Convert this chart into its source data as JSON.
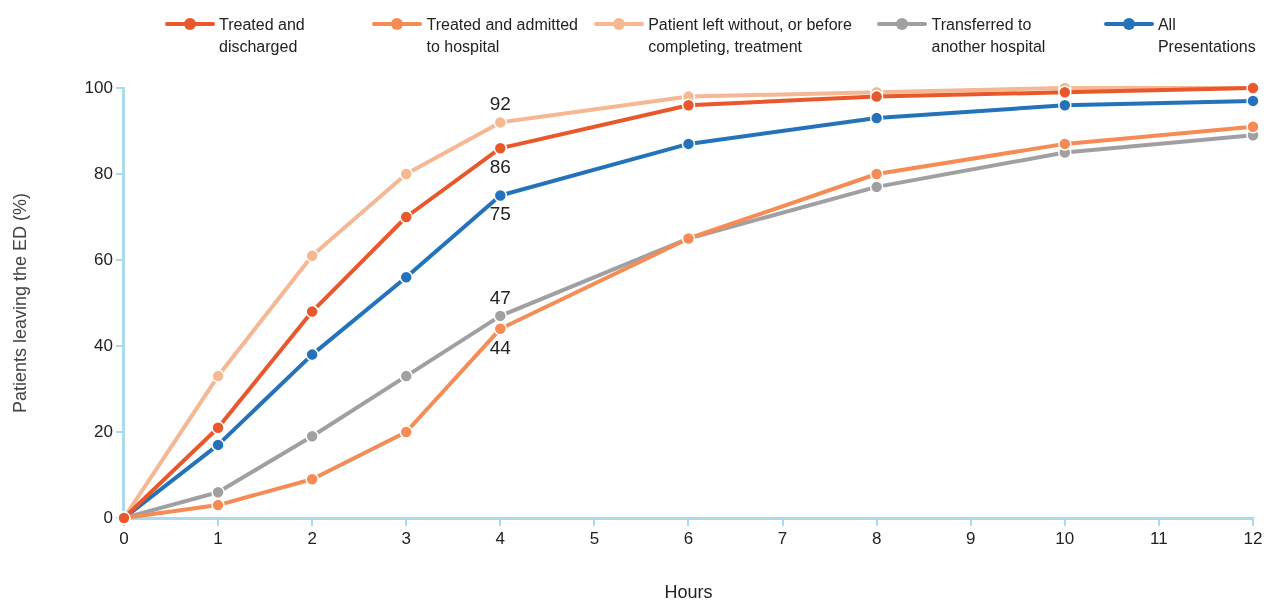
{
  "chart_data": {
    "type": "line",
    "xlabel": "Hours",
    "ylabel": "Patients leaving the ED (%)",
    "x": [
      0,
      1,
      2,
      3,
      4,
      6,
      8,
      10,
      12
    ],
    "xlim": [
      0,
      12
    ],
    "xticks": [
      0,
      1,
      2,
      3,
      4,
      5,
      6,
      7,
      8,
      9,
      10,
      11,
      12
    ],
    "ylim": [
      0,
      100
    ],
    "yticks": [
      0,
      20,
      40,
      60,
      80,
      100
    ],
    "grid": false,
    "legend": "top",
    "marker": "circle",
    "line_style": "solid",
    "series": [
      {
        "name": "Treated and discharged",
        "color": "#e9582a",
        "values": [
          0,
          21,
          48,
          70,
          86,
          96,
          98,
          99,
          100
        ],
        "value_labels": [
          null,
          null,
          null,
          null,
          "86",
          null,
          null,
          null,
          null
        ]
      },
      {
        "name": "Treated and admitted to hospital",
        "color": "#f58c55",
        "values": [
          0,
          3,
          9,
          20,
          44,
          65,
          80,
          87,
          91
        ],
        "value_labels": [
          null,
          null,
          null,
          null,
          "44",
          null,
          null,
          null,
          null
        ]
      },
      {
        "name": "Patient left without, or before completing, treatment",
        "color": "#f6b793",
        "values": [
          0,
          33,
          61,
          80,
          92,
          98,
          99,
          100,
          100
        ],
        "value_labels": [
          null,
          null,
          null,
          null,
          "92",
          null,
          null,
          null,
          null
        ]
      },
      {
        "name": "Transferred to another hospital",
        "color": "#a0a0a3",
        "values": [
          0,
          6,
          19,
          33,
          47,
          65,
          77,
          85,
          89
        ],
        "value_labels": [
          null,
          null,
          null,
          null,
          "47",
          null,
          null,
          null,
          null
        ]
      },
      {
        "name": "All Presentations",
        "color": "#2473ba",
        "values": [
          0,
          17,
          38,
          56,
          75,
          87,
          93,
          96,
          97
        ],
        "value_labels": [
          null,
          null,
          null,
          null,
          "75",
          null,
          null,
          null,
          null
        ]
      }
    ]
  }
}
